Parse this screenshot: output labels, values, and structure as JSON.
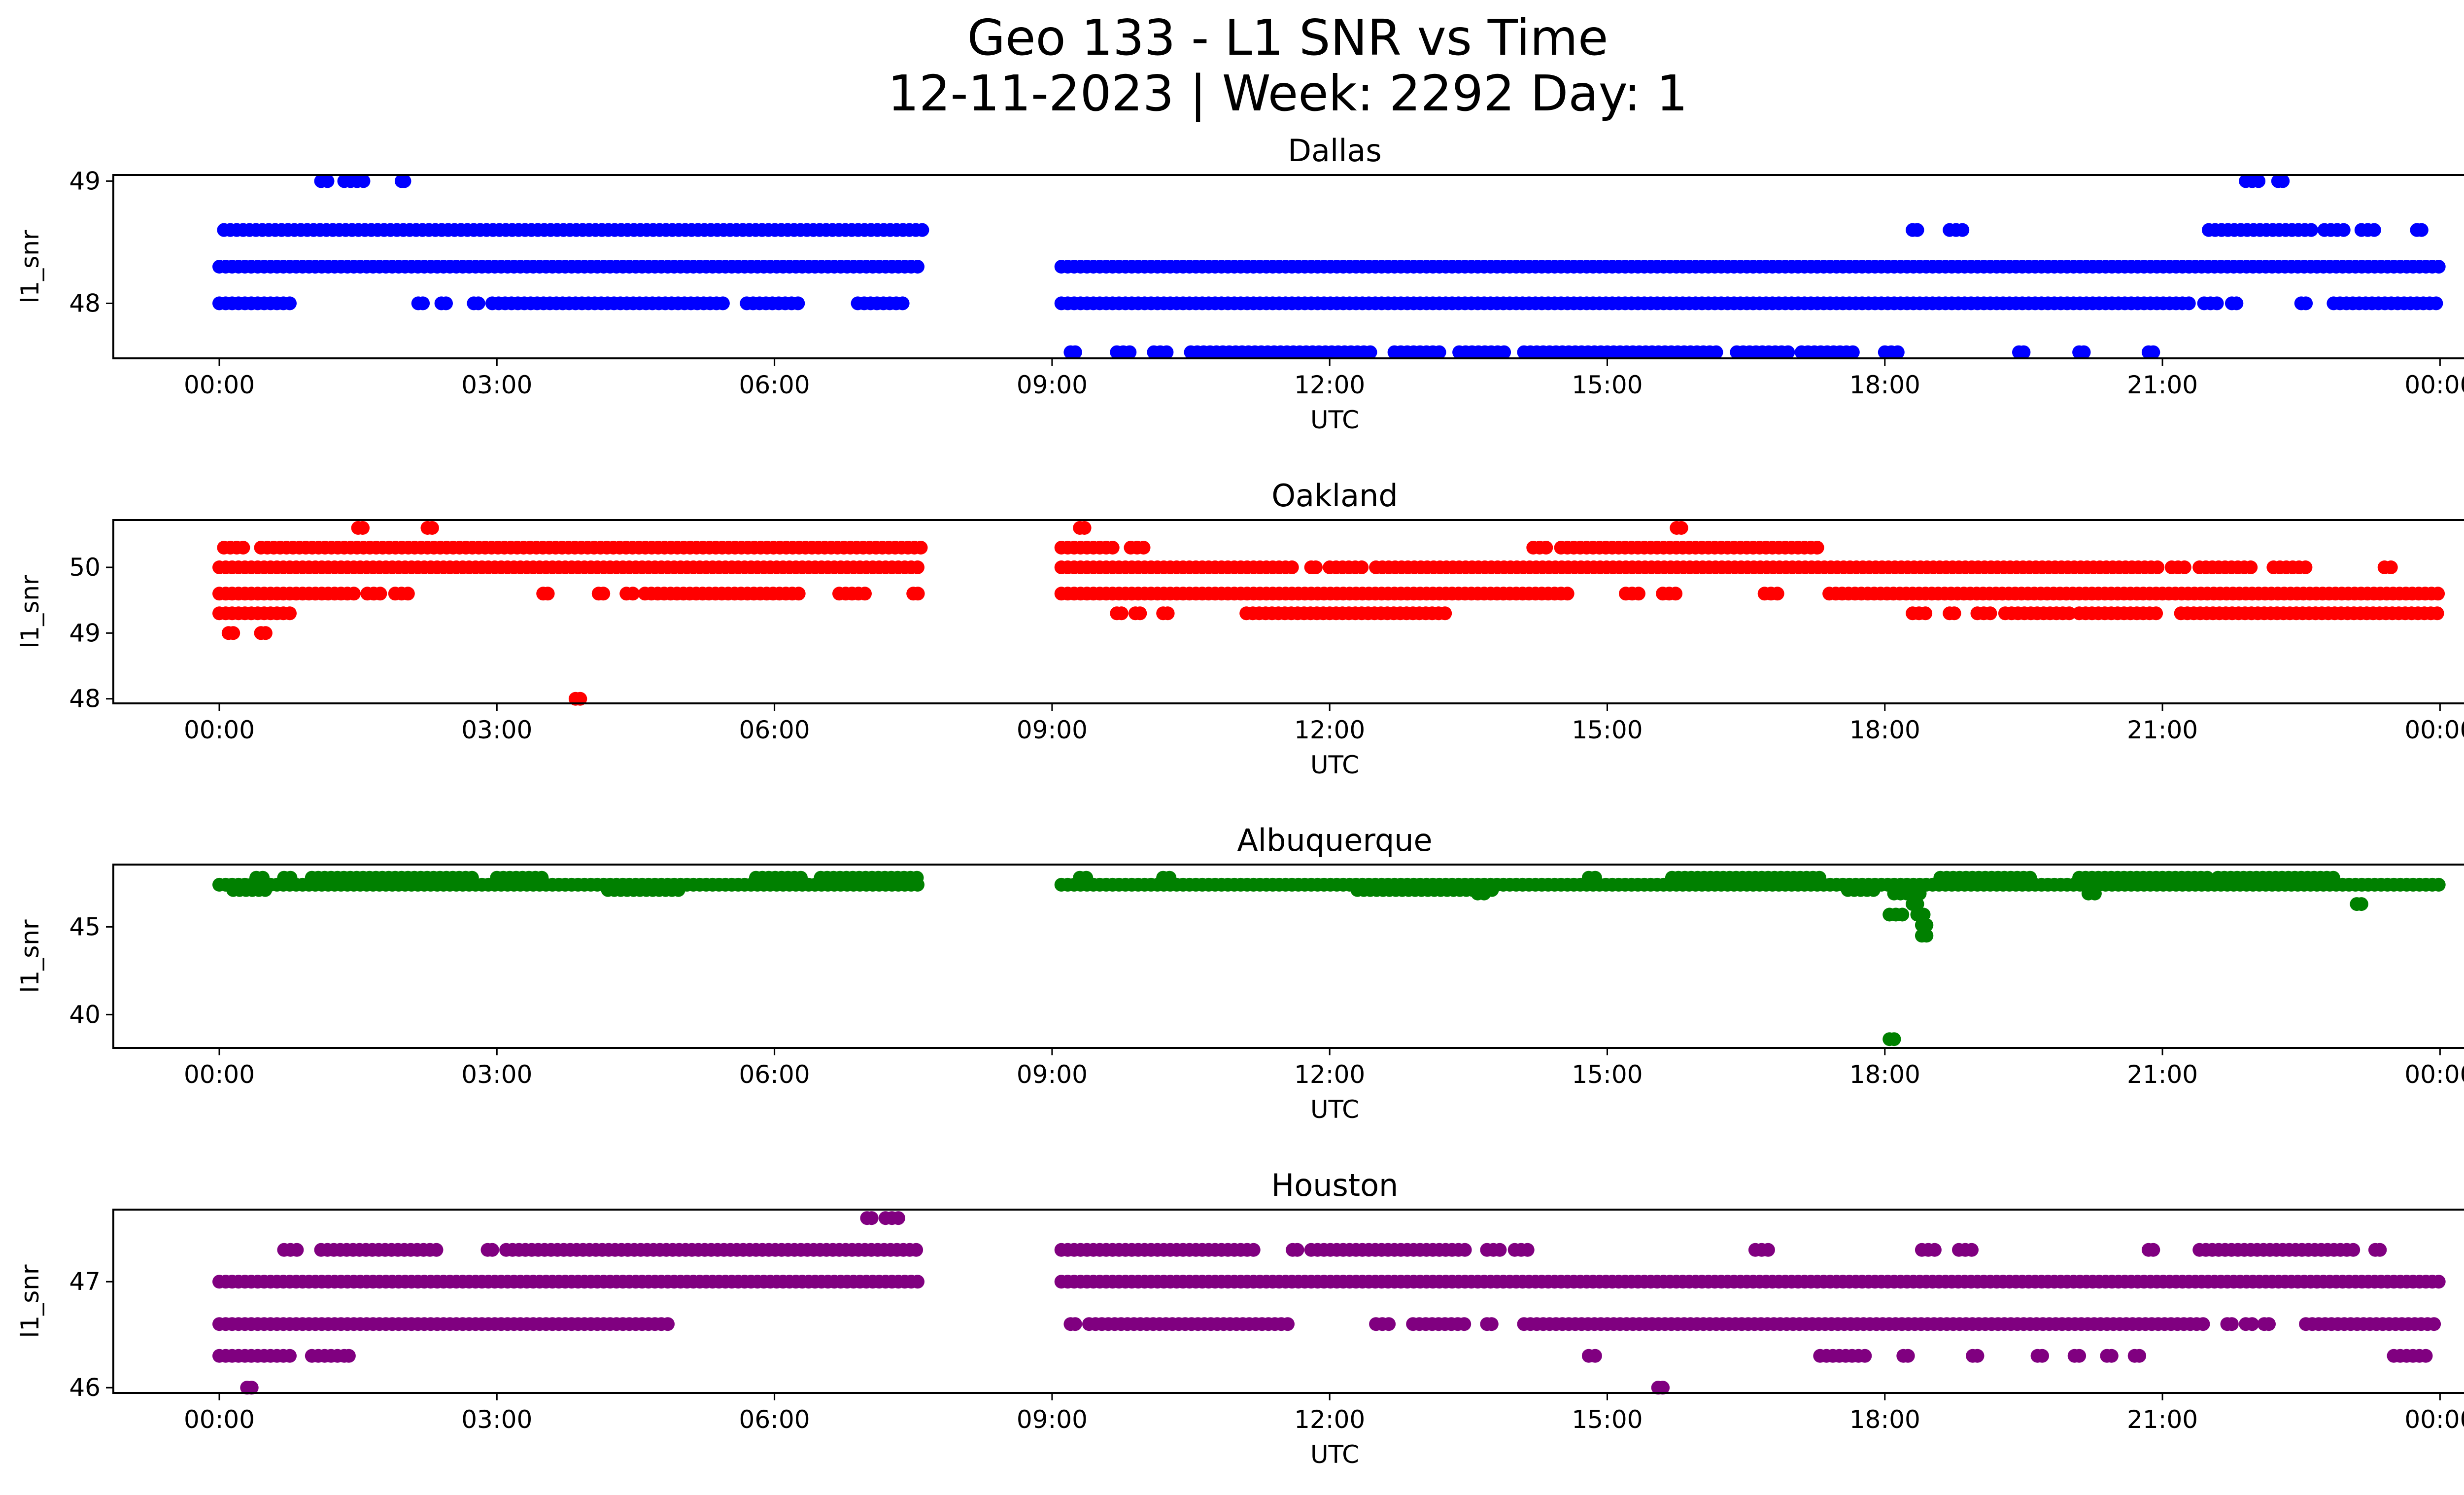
{
  "figure": {
    "title_line1": "Geo 133 - L1 SNR vs Time",
    "title_line2": "12-11-2023 | Week: 2292 Day: 1"
  },
  "chart_data": [
    {
      "type": "scatter",
      "title": "Dallas",
      "xlabel": "UTC",
      "ylabel": "l1_snr",
      "color": "#0000ff",
      "x_ticks": [
        "00:00",
        "03:00",
        "06:00",
        "09:00",
        "12:00",
        "15:00",
        "18:00",
        "21:00",
        "00:00"
      ],
      "x_range_hours": [
        -1.2,
        25.2
      ],
      "y_ticks": [
        48,
        49
      ],
      "ylim": [
        47.55,
        49.05
      ],
      "levels": [
        {
          "y": 49.0,
          "segments": [
            [
              1.1,
              1.2
            ],
            [
              1.35,
              1.6
            ],
            [
              1.97,
              2.0
            ],
            [
              21.9,
              22.05
            ],
            [
              22.25,
              22.3
            ]
          ]
        },
        {
          "y": 48.6,
          "segments": [
            [
              0.05,
              7.6
            ],
            [
              18.3,
              18.35
            ],
            [
              18.7,
              18.9
            ],
            [
              21.5,
              22.65
            ],
            [
              22.75,
              23.0
            ],
            [
              23.15,
              23.3
            ],
            [
              23.75,
              23.8
            ]
          ]
        },
        {
          "y": 48.3,
          "segments": [
            [
              0.0,
              7.6
            ],
            [
              9.1,
              24.0
            ]
          ]
        },
        {
          "y": 48.0,
          "segments": [
            [
              0.0,
              0.8
            ],
            [
              2.15,
              2.2
            ],
            [
              2.4,
              2.45
            ],
            [
              2.75,
              2.8
            ],
            [
              2.95,
              5.5
            ],
            [
              5.7,
              6.3
            ],
            [
              6.9,
              7.4
            ],
            [
              9.1,
              21.3
            ],
            [
              21.45,
              21.65
            ],
            [
              21.75,
              21.8
            ],
            [
              22.5,
              22.55
            ],
            [
              22.85,
              24.0
            ]
          ]
        },
        {
          "y": 47.6,
          "segments": [
            [
              9.2,
              9.25
            ],
            [
              9.7,
              9.9
            ],
            [
              10.1,
              10.3
            ],
            [
              10.5,
              12.5
            ],
            [
              12.7,
              13.2
            ],
            [
              13.4,
              13.9
            ],
            [
              14.1,
              16.2
            ],
            [
              16.4,
              17.0
            ],
            [
              17.1,
              17.7
            ],
            [
              18.0,
              18.15
            ],
            [
              19.45,
              19.5
            ],
            [
              20.1,
              20.15
            ],
            [
              20.85,
              20.9
            ]
          ]
        }
      ]
    },
    {
      "type": "scatter",
      "title": "Oakland",
      "xlabel": "UTC",
      "ylabel": "l1_snr",
      "color": "#ff0000",
      "x_ticks": [
        "00:00",
        "03:00",
        "06:00",
        "09:00",
        "12:00",
        "15:00",
        "18:00",
        "21:00",
        "00:00"
      ],
      "x_range_hours": [
        -1.2,
        25.2
      ],
      "y_ticks": [
        48,
        49,
        50
      ],
      "ylim": [
        47.93,
        50.72
      ],
      "levels": [
        {
          "y": 50.6,
          "segments": [
            [
              1.5,
              1.55
            ],
            [
              2.25,
              2.3
            ],
            [
              9.3,
              9.35
            ],
            [
              15.75,
              15.8
            ]
          ]
        },
        {
          "y": 50.3,
          "segments": [
            [
              0.05,
              0.3
            ],
            [
              0.45,
              7.6
            ],
            [
              9.1,
              9.7
            ],
            [
              9.85,
              10.0
            ],
            [
              14.2,
              14.4
            ],
            [
              14.5,
              17.3
            ]
          ]
        },
        {
          "y": 50.0,
          "segments": [
            [
              0.0,
              7.6
            ],
            [
              9.1,
              11.6
            ],
            [
              11.8,
              11.85
            ],
            [
              12.0,
              12.4
            ],
            [
              12.5,
              21.0
            ],
            [
              21.1,
              21.3
            ],
            [
              21.4,
              22.0
            ],
            [
              22.2,
              22.6
            ],
            [
              23.4,
              23.5
            ]
          ]
        },
        {
          "y": 49.6,
          "segments": [
            [
              0.0,
              1.5
            ],
            [
              1.6,
              1.8
            ],
            [
              1.9,
              2.1
            ],
            [
              3.5,
              3.55
            ],
            [
              4.1,
              4.15
            ],
            [
              4.4,
              4.5
            ],
            [
              4.6,
              6.3
            ],
            [
              6.7,
              7.0
            ],
            [
              7.5,
              7.55
            ],
            [
              9.1,
              14.6
            ],
            [
              15.2,
              15.4
            ],
            [
              15.6,
              15.8
            ],
            [
              16.7,
              16.9
            ],
            [
              17.4,
              24.0
            ]
          ]
        },
        {
          "y": 49.3,
          "segments": [
            [
              0.0,
              0.8
            ],
            [
              9.7,
              9.75
            ],
            [
              9.9,
              9.95
            ],
            [
              10.2,
              10.25
            ],
            [
              11.1,
              13.3
            ],
            [
              18.3,
              18.5
            ],
            [
              18.7,
              18.75
            ],
            [
              19.0,
              19.2
            ],
            [
              19.3,
              20.0
            ],
            [
              20.1,
              21.0
            ],
            [
              21.2,
              24.0
            ]
          ]
        },
        {
          "y": 49.0,
          "segments": [
            [
              0.1,
              0.15
            ],
            [
              0.45,
              0.5
            ]
          ]
        },
        {
          "y": 48.0,
          "segments": [
            [
              3.85,
              3.9
            ]
          ]
        }
      ]
    },
    {
      "type": "scatter",
      "title": "Albuquerque",
      "xlabel": "UTC",
      "ylabel": "l1_snr",
      "color": "#008000",
      "x_ticks": [
        "00:00",
        "03:00",
        "06:00",
        "09:00",
        "12:00",
        "15:00",
        "18:00",
        "21:00",
        "00:00"
      ],
      "x_range_hours": [
        -1.2,
        25.2
      ],
      "y_ticks": [
        40,
        45
      ],
      "ylim": [
        38.1,
        48.55
      ],
      "levels": [
        {
          "y": 47.8,
          "segments": [
            [
              0.4,
              0.5
            ],
            [
              0.7,
              0.8
            ],
            [
              1.0,
              2.8
            ],
            [
              3.0,
              3.5
            ],
            [
              5.8,
              6.3
            ],
            [
              6.5,
              7.6
            ],
            [
              9.3,
              9.4
            ],
            [
              10.2,
              10.3
            ],
            [
              14.8,
              14.9
            ],
            [
              15.7,
              17.3
            ],
            [
              18.6,
              19.6
            ],
            [
              20.1,
              21.5
            ],
            [
              21.6,
              22.9
            ]
          ]
        },
        {
          "y": 47.4,
          "segments": [
            [
              0.0,
              7.6
            ],
            [
              9.1,
              24.0
            ]
          ]
        },
        {
          "y": 47.1,
          "segments": [
            [
              0.15,
              0.5
            ],
            [
              4.2,
              5.0
            ],
            [
              12.3,
              13.8
            ],
            [
              17.6,
              17.9
            ]
          ]
        },
        {
          "y": 46.9,
          "segments": [
            [
              13.6,
              13.7
            ],
            [
              18.1,
              18.4
            ],
            [
              20.2,
              20.3
            ]
          ]
        },
        {
          "y": 46.3,
          "segments": [
            [
              18.3,
              18.35
            ],
            [
              23.1,
              23.15
            ]
          ]
        },
        {
          "y": 45.7,
          "segments": [
            [
              18.05,
              18.2
            ],
            [
              18.35,
              18.45
            ]
          ]
        },
        {
          "y": 45.1,
          "segments": [
            [
              18.4,
              18.45
            ]
          ]
        },
        {
          "y": 44.5,
          "segments": [
            [
              18.4,
              18.45
            ]
          ]
        },
        {
          "y": 38.6,
          "segments": [
            [
              18.05,
              18.1
            ]
          ]
        }
      ]
    },
    {
      "type": "scatter",
      "title": "Houston",
      "xlabel": "UTC",
      "ylabel": "l1_snr",
      "color": "#800080",
      "x_ticks": [
        "00:00",
        "03:00",
        "06:00",
        "09:00",
        "12:00",
        "15:00",
        "18:00",
        "21:00",
        "00:00"
      ],
      "x_range_hours": [
        -1.2,
        25.2
      ],
      "y_ticks": [
        46,
        47
      ],
      "ylim": [
        45.95,
        47.68
      ],
      "levels": [
        {
          "y": 47.6,
          "segments": [
            [
              7.0,
              7.05
            ],
            [
              7.2,
              7.4
            ]
          ]
        },
        {
          "y": 47.3,
          "segments": [
            [
              0.7,
              0.85
            ],
            [
              1.1,
              2.4
            ],
            [
              2.9,
              2.95
            ],
            [
              3.1,
              7.6
            ],
            [
              9.1,
              11.2
            ],
            [
              11.6,
              11.65
            ],
            [
              11.8,
              13.5
            ],
            [
              13.7,
              13.9
            ],
            [
              14.0,
              14.2
            ],
            [
              16.6,
              16.75
            ],
            [
              18.4,
              18.55
            ],
            [
              18.8,
              18.95
            ],
            [
              20.85,
              20.9
            ],
            [
              21.4,
              23.1
            ],
            [
              23.3,
              23.35
            ]
          ]
        },
        {
          "y": 47.0,
          "segments": [
            [
              0.0,
              7.6
            ],
            [
              9.1,
              24.0
            ]
          ]
        },
        {
          "y": 46.6,
          "segments": [
            [
              0.0,
              4.9
            ],
            [
              9.2,
              9.25
            ],
            [
              9.4,
              11.6
            ],
            [
              12.5,
              12.65
            ],
            [
              12.9,
              13.5
            ],
            [
              13.7,
              13.75
            ],
            [
              14.1,
              21.5
            ],
            [
              21.7,
              21.75
            ],
            [
              21.9,
              22.0
            ],
            [
              22.1,
              22.15
            ],
            [
              22.55,
              24.0
            ]
          ]
        },
        {
          "y": 46.3,
          "segments": [
            [
              0.0,
              0.8
            ],
            [
              1.0,
              1.3
            ],
            [
              1.35,
              1.4
            ],
            [
              14.8,
              14.9
            ],
            [
              17.3,
              17.8
            ],
            [
              18.2,
              18.25
            ],
            [
              18.95,
              19.0
            ],
            [
              19.65,
              19.7
            ],
            [
              20.05,
              20.1
            ],
            [
              20.4,
              20.45
            ],
            [
              20.7,
              20.75
            ],
            [
              23.5,
              23.9
            ]
          ]
        },
        {
          "y": 46.0,
          "segments": [
            [
              0.3,
              0.35
            ],
            [
              15.55,
              15.6
            ]
          ]
        }
      ]
    }
  ]
}
